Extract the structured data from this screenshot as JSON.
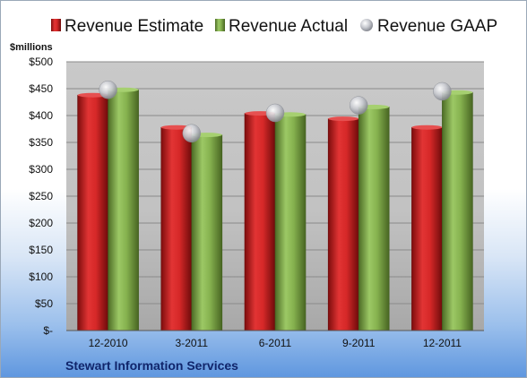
{
  "chart_data": {
    "type": "bar",
    "unit_label": "$millions",
    "categories": [
      "12-2010",
      "3-2011",
      "6-2011",
      "9-2011",
      "12-2011"
    ],
    "series": [
      {
        "name": "Revenue Estimate",
        "kind": "bar",
        "color": "#cc1f1f",
        "values": [
          438,
          378,
          404,
          394,
          378
        ]
      },
      {
        "name": "Revenue Actual",
        "kind": "bar",
        "color": "#7ca846",
        "values": [
          448,
          364,
          402,
          416,
          443
        ]
      },
      {
        "name": "Revenue GAAP",
        "kind": "marker",
        "color": "#b8bcc4",
        "values": [
          448,
          367,
          405,
          419,
          445
        ]
      }
    ],
    "ylim": [
      0,
      500
    ],
    "yticks": [
      0,
      50,
      100,
      150,
      200,
      250,
      300,
      350,
      400,
      450,
      500
    ],
    "ytick_labels": [
      "$-",
      "$50",
      "$100",
      "$150",
      "$200",
      "$250",
      "$300",
      "$350",
      "$400",
      "$450",
      "$500"
    ],
    "grid": true,
    "legend_position": "top",
    "company": "Stewart Information Services"
  }
}
